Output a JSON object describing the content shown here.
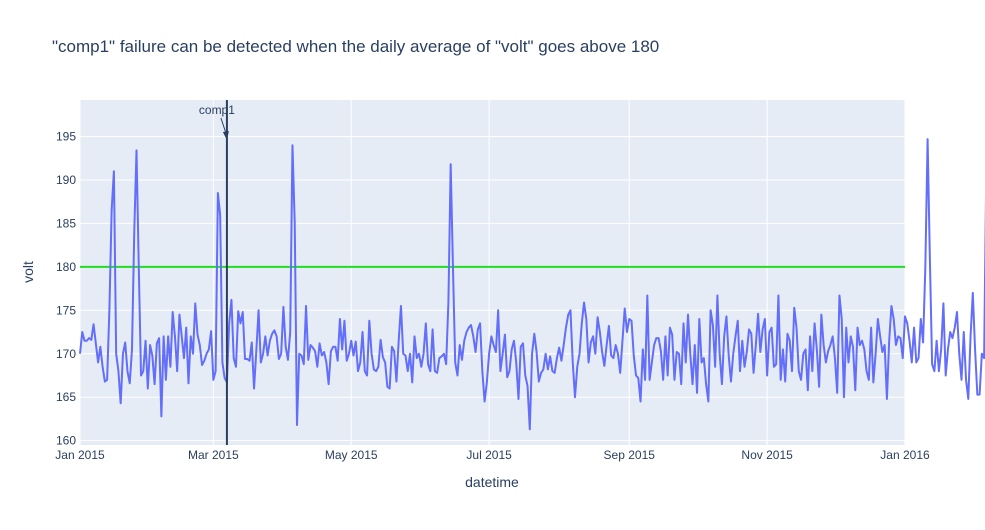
{
  "chart_data": {
    "type": "line",
    "title": "\"comp1\" failure can be detected when the daily average of \"volt\" goes above 180",
    "xlabel": "datetime",
    "ylabel": "volt",
    "x_range": [
      "2015-01-01",
      "2016-01-01"
    ],
    "ylim": [
      159.5,
      199.2
    ],
    "y_ticks": [
      160,
      165,
      170,
      175,
      180,
      185,
      190,
      195
    ],
    "x_ticks": [
      {
        "date": "2015-01-01",
        "label": "Jan 2015"
      },
      {
        "date": "2015-03-01",
        "label": "Mar 2015"
      },
      {
        "date": "2015-05-01",
        "label": "May 2015"
      },
      {
        "date": "2015-07-01",
        "label": "Jul 2015"
      },
      {
        "date": "2015-09-01",
        "label": "Sep 2015"
      },
      {
        "date": "2015-11-01",
        "label": "Nov 2015"
      },
      {
        "date": "2016-01-01",
        "label": "Jan 2016"
      }
    ],
    "threshold": {
      "value": 180,
      "color": "#22dd22"
    },
    "annotation": {
      "text": "comp1",
      "date": "2015-03-07"
    },
    "series": [
      {
        "color": "#636efa",
        "start": "2015-01-01",
        "values": [
          170.0,
          172.5,
          171.5,
          171.5,
          171.8,
          171.6,
          173.4,
          171.2,
          169.0,
          170.8,
          168.5,
          166.8,
          167.0,
          175.0,
          186.5,
          191.0,
          170.0,
          168.0,
          164.3,
          170.0,
          171.3,
          168.0,
          166.6,
          170.5,
          184.0,
          193.4,
          180.0,
          167.5,
          168.0,
          171.5,
          166.0,
          171.0,
          169.8,
          166.5,
          171.2,
          171.8,
          162.8,
          172.0,
          167.0,
          172.0,
          168.5,
          174.8,
          172.0,
          168.0,
          174.5,
          172.0,
          169.5,
          173.0,
          166.6,
          172.0,
          170.0,
          175.8,
          172.2,
          171.0,
          168.7,
          169.2,
          170.0,
          170.5,
          172.6,
          167.0,
          168.0,
          188.5,
          186.0,
          169.0,
          167.2,
          166.7,
          173.5,
          176.2,
          169.5,
          168.5,
          174.9,
          173.5,
          174.8,
          169.4,
          169.4,
          169.2,
          171.3,
          166.0,
          170.3,
          175.0,
          169.0,
          170.0,
          172.0,
          169.8,
          171.5,
          172.3,
          172.7,
          172.0,
          169.4,
          170.0,
          175.4,
          170.8,
          169.3,
          172.5,
          194.0,
          185.0,
          161.8,
          170.0,
          169.8,
          168.8,
          175.5,
          169.3,
          171.0,
          170.7,
          170.3,
          168.5,
          171.2,
          169.8,
          170.2,
          169.0,
          166.5,
          170.3,
          170.8,
          170.8,
          169.2,
          174.0,
          170.5,
          173.8,
          169.2,
          170.0,
          171.5,
          169.8,
          171.4,
          168.0,
          169.0,
          172.5,
          168.0,
          167.5,
          173.8,
          170.0,
          168.2,
          168.0,
          168.5,
          171.6,
          169.6,
          169.0,
          166.2,
          166.0,
          170.8,
          170.3,
          166.8,
          171.5,
          175.5,
          170.0,
          169.8,
          168.0,
          170.0,
          166.7,
          172.0,
          169.5,
          170.0,
          168.5,
          170.0,
          173.5,
          168.8,
          168.0,
          172.8,
          168.0,
          167.8,
          169.5,
          169.7,
          170.0,
          168.8,
          176.0,
          191.8,
          180.0,
          169.0,
          167.5,
          171.0,
          169.3,
          171.5,
          172.5,
          173.0,
          173.3,
          172.0,
          170.2,
          172.8,
          173.5,
          168.0,
          164.5,
          166.7,
          170.0,
          172.0,
          171.0,
          170.2,
          175.0,
          168.0,
          170.0,
          172.2,
          167.3,
          168.0,
          170.5,
          171.5,
          169.0,
          164.8,
          170.8,
          171.2,
          167.5,
          166.3,
          161.3,
          170.0,
          172.3,
          170.2,
          166.8,
          167.8,
          168.2,
          170.0,
          168.2,
          169.7,
          168.0,
          167.8,
          169.5,
          170.7,
          169.2,
          171.0,
          173.0,
          174.5,
          175.0,
          169.0,
          165.0,
          168.5,
          170.0,
          173.5,
          175.9,
          174.0,
          169.0,
          171.3,
          172.0,
          170.0,
          174.2,
          172.5,
          170.2,
          168.6,
          171.0,
          173.2,
          169.8,
          169.5,
          171.0,
          170.0,
          167.8,
          171.5,
          175.2,
          172.5,
          174.0,
          173.8,
          169.8,
          167.5,
          167.2,
          164.5,
          170.5,
          167.0,
          176.7,
          167.0,
          169.0,
          171.0,
          171.8,
          171.8,
          170.3,
          167.0,
          172.0,
          167.5,
          173.0,
          172.2,
          167.0,
          170.2,
          170.0,
          166.5,
          173.5,
          169.0,
          174.5,
          170.0,
          166.5,
          171.0,
          165.5,
          174.0,
          169.0,
          169.5,
          166.5,
          164.5,
          175.0,
          173.3,
          168.5,
          176.7,
          170.0,
          166.5,
          172.0,
          174.3,
          169.8,
          166.8,
          170.0,
          172.0,
          173.8,
          168.0,
          171.5,
          168.5,
          170.2,
          172.8,
          172.3,
          167.8,
          171.0,
          174.6,
          170.2,
          172.8,
          174.0,
          167.5,
          172.5,
          173.0,
          168.5,
          168.8,
          176.7,
          167.0,
          170.5,
          166.8,
          172.3,
          171.5,
          168.0,
          175.3,
          173.0,
          168.0,
          167.0,
          170.0,
          170.5,
          165.8,
          172.0,
          168.0,
          173.5,
          170.5,
          166.2,
          174.5,
          171.0,
          169.0,
          170.3,
          171.0,
          172.0,
          169.5,
          165.5,
          176.7,
          174.0,
          165.0,
          173.0,
          169.0,
          172.0,
          170.8,
          165.8,
          173.0,
          171.0,
          171.5,
          170.5,
          168.0,
          167.0,
          173.0,
          166.7,
          170.0,
          174.0,
          172.0,
          170.2,
          171.0,
          164.8,
          171.5,
          175.5,
          174.0,
          171.0,
          172.0,
          171.8,
          169.5,
          174.3,
          173.5,
          171.5,
          169.0,
          173.0,
          169.0,
          169.5,
          174.0,
          171.3,
          180.0,
          194.7,
          181.0,
          168.8,
          168.0,
          171.5,
          168.0,
          170.5,
          175.8,
          167.5,
          170.5,
          172.5,
          171.8,
          173.0,
          174.8,
          170.0,
          167.0,
          172.5,
          167.0,
          164.8,
          172.0,
          177.0,
          170.5,
          165.3,
          165.3,
          170.0,
          169.5,
          191.8
        ]
      }
    ]
  }
}
